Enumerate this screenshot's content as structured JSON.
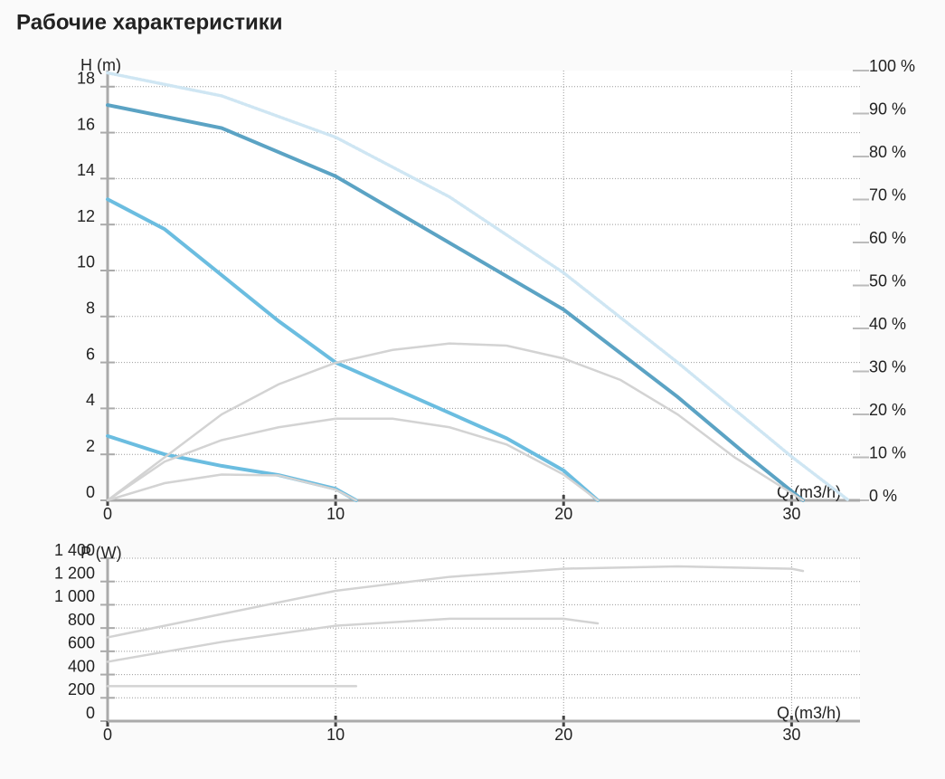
{
  "chart_data": [
    {
      "type": "line",
      "title": "Рабочие характеристики",
      "y_label": "H (m)",
      "x_label": "Q (m3/h)",
      "xlim": [
        0,
        33
      ],
      "xticks": [
        0,
        10,
        20,
        30
      ],
      "ylim": [
        0,
        18.7
      ],
      "yticks": [
        0,
        2,
        4,
        6,
        8,
        10,
        12,
        14,
        16,
        18
      ],
      "y2lim": [
        0,
        100
      ],
      "y2ticks": [
        {
          "value": 0,
          "label": "0 %"
        },
        {
          "value": 10,
          "label": "10 %"
        },
        {
          "value": 20,
          "label": "20 %"
        },
        {
          "value": 30,
          "label": "30 %"
        },
        {
          "value": 40,
          "label": "40 %"
        },
        {
          "value": 50,
          "label": "50 %"
        },
        {
          "value": 60,
          "label": "60 %"
        },
        {
          "value": 70,
          "label": "70 %"
        },
        {
          "value": 80,
          "label": "80 %"
        },
        {
          "value": 90,
          "label": "90 %"
        },
        {
          "value": 100,
          "label": "100 %"
        }
      ],
      "grid": true,
      "series": [
        {
          "color": "#cfe6f3",
          "style": "dotted",
          "x": [
            0,
            5,
            10,
            15,
            20,
            25,
            30,
            32.5
          ],
          "values": [
            18.6,
            17.6,
            15.8,
            13.2,
            9.9,
            6.0,
            1.9,
            0
          ]
        },
        {
          "color": "#5ba3c4",
          "x": [
            0,
            5,
            10,
            15,
            20,
            25,
            28,
            30.5
          ],
          "values": [
            17.2,
            16.2,
            14.1,
            11.2,
            8.3,
            4.5,
            2.0,
            0
          ]
        },
        {
          "color": "#6bbde0",
          "x": [
            0,
            2.5,
            5,
            7.5,
            10,
            12.5,
            15,
            17.5,
            20,
            21.5
          ],
          "values": [
            13.1,
            11.8,
            9.8,
            7.8,
            6.0,
            4.9,
            3.8,
            2.7,
            1.3,
            0
          ]
        },
        {
          "color": "#6bbde0",
          "x": [
            0,
            2.5,
            5,
            7.5,
            10,
            10.9
          ],
          "values": [
            2.8,
            2.0,
            1.5,
            1.1,
            0.5,
            0
          ]
        },
        {
          "color": "#d3d3d3",
          "axis": "y2",
          "x": [
            0,
            2.5,
            5,
            7.5,
            10,
            12.5,
            15,
            17.5,
            20,
            22.5,
            25,
            27.5,
            30.5
          ],
          "values": [
            0,
            10,
            20,
            27,
            32,
            35,
            36.5,
            36,
            33,
            28,
            20,
            10,
            0
          ]
        },
        {
          "color": "#d3d3d3",
          "axis": "y2",
          "x": [
            0,
            2.5,
            5,
            7.5,
            10,
            12.5,
            15,
            17.5,
            20,
            21.5
          ],
          "values": [
            0,
            9,
            14,
            17,
            19,
            19,
            17,
            13,
            6,
            0
          ]
        },
        {
          "color": "#d3d3d3",
          "axis": "y2",
          "x": [
            0,
            2.5,
            5,
            7.5,
            10,
            10.9
          ],
          "values": [
            0,
            4,
            6,
            5.8,
            2.5,
            0
          ]
        }
      ]
    },
    {
      "type": "line",
      "y_label": "P (W)",
      "x_label": "Q (m3/h)",
      "xlim": [
        0,
        33
      ],
      "xticks": [
        0,
        10,
        20,
        30
      ],
      "ylim": [
        0,
        1400
      ],
      "yticks": [
        0,
        200,
        400,
        600,
        800,
        {
          "value": 1000,
          "label": "1 000"
        },
        {
          "value": 1200,
          "label": "1 200"
        },
        {
          "value": 1400,
          "label": "1 400"
        }
      ],
      "grid": true,
      "series": [
        {
          "color": "#d3d3d3",
          "x": [
            0,
            5,
            10,
            15,
            20,
            25,
            30,
            30.5
          ],
          "values": [
            720,
            920,
            1120,
            1240,
            1310,
            1330,
            1310,
            1290
          ]
        },
        {
          "color": "#d3d3d3",
          "x": [
            0,
            5,
            10,
            15,
            20,
            21.5
          ],
          "values": [
            510,
            680,
            820,
            880,
            880,
            840
          ]
        },
        {
          "color": "#d3d3d3",
          "x": [
            0,
            10.9
          ],
          "values": [
            300,
            300
          ]
        }
      ]
    }
  ]
}
